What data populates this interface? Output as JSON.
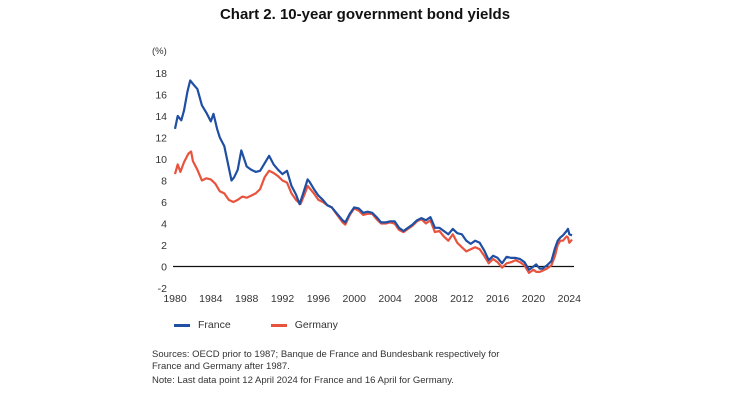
{
  "title": "Chart 2. 10-year government bond yields",
  "chart_data": {
    "type": "line",
    "unit_label": "(%)",
    "xlim": [
      1980,
      2024.3
    ],
    "ylim": [
      -2,
      18
    ],
    "x_ticks": [
      1980,
      1984,
      1988,
      1992,
      1996,
      2000,
      2004,
      2008,
      2012,
      2016,
      2020,
      2024
    ],
    "y_ticks": [
      -2,
      0,
      2,
      4,
      6,
      8,
      10,
      12,
      14,
      16,
      18
    ],
    "grid": false,
    "zero_line": true,
    "legend_position": "bottom-left",
    "series": [
      {
        "name": "France",
        "color": "#1f4fa3",
        "points": [
          [
            1980,
            12.8
          ],
          [
            1980.3,
            14.0
          ],
          [
            1980.7,
            13.6
          ],
          [
            1981,
            14.5
          ],
          [
            1981.4,
            16.3
          ],
          [
            1981.7,
            17.3
          ],
          [
            1982,
            17.0
          ],
          [
            1982.5,
            16.5
          ],
          [
            1983,
            15.0
          ],
          [
            1983.5,
            14.3
          ],
          [
            1984,
            13.5
          ],
          [
            1984.3,
            14.2
          ],
          [
            1984.7,
            12.8
          ],
          [
            1985,
            12.0
          ],
          [
            1985.5,
            11.2
          ],
          [
            1986,
            9.2
          ],
          [
            1986.3,
            8.0
          ],
          [
            1986.6,
            8.3
          ],
          [
            1987,
            9.0
          ],
          [
            1987.4,
            10.8
          ],
          [
            1987.8,
            9.8
          ],
          [
            1988,
            9.3
          ],
          [
            1988.5,
            9.0
          ],
          [
            1989,
            8.8
          ],
          [
            1989.5,
            8.9
          ],
          [
            1990,
            9.6
          ],
          [
            1990.5,
            10.3
          ],
          [
            1991,
            9.5
          ],
          [
            1991.5,
            9.0
          ],
          [
            1992,
            8.6
          ],
          [
            1992.5,
            8.9
          ],
          [
            1993,
            7.5
          ],
          [
            1993.5,
            6.7
          ],
          [
            1993.9,
            5.8
          ],
          [
            1994.3,
            6.8
          ],
          [
            1994.8,
            8.1
          ],
          [
            1995,
            7.9
          ],
          [
            1995.5,
            7.2
          ],
          [
            1996,
            6.6
          ],
          [
            1996.5,
            6.2
          ],
          [
            1997,
            5.7
          ],
          [
            1997.5,
            5.5
          ],
          [
            1998,
            5.0
          ],
          [
            1998.7,
            4.3
          ],
          [
            1999,
            4.1
          ],
          [
            1999.5,
            4.9
          ],
          [
            2000,
            5.5
          ],
          [
            2000.5,
            5.4
          ],
          [
            2001,
            5.0
          ],
          [
            2001.5,
            5.1
          ],
          [
            2002,
            5.0
          ],
          [
            2002.5,
            4.6
          ],
          [
            2003,
            4.1
          ],
          [
            2003.5,
            4.1
          ],
          [
            2004,
            4.2
          ],
          [
            2004.5,
            4.2
          ],
          [
            2005,
            3.6
          ],
          [
            2005.5,
            3.3
          ],
          [
            2006,
            3.6
          ],
          [
            2006.5,
            3.9
          ],
          [
            2007,
            4.3
          ],
          [
            2007.5,
            4.5
          ],
          [
            2008,
            4.3
          ],
          [
            2008.5,
            4.6
          ],
          [
            2009,
            3.6
          ],
          [
            2009.5,
            3.6
          ],
          [
            2010,
            3.3
          ],
          [
            2010.5,
            3.0
          ],
          [
            2011,
            3.5
          ],
          [
            2011.5,
            3.1
          ],
          [
            2012,
            3.0
          ],
          [
            2012.5,
            2.4
          ],
          [
            2013,
            2.1
          ],
          [
            2013.5,
            2.4
          ],
          [
            2014,
            2.2
          ],
          [
            2014.5,
            1.5
          ],
          [
            2015,
            0.6
          ],
          [
            2015.5,
            1.0
          ],
          [
            2016,
            0.8
          ],
          [
            2016.5,
            0.3
          ],
          [
            2017,
            0.9
          ],
          [
            2017.5,
            0.8
          ],
          [
            2018,
            0.8
          ],
          [
            2018.5,
            0.7
          ],
          [
            2019,
            0.4
          ],
          [
            2019.5,
            -0.3
          ],
          [
            2020,
            0.0
          ],
          [
            2020.3,
            0.2
          ],
          [
            2020.7,
            -0.2
          ],
          [
            2021,
            -0.2
          ],
          [
            2021.5,
            0.1
          ],
          [
            2022,
            0.5
          ],
          [
            2022.4,
            1.7
          ],
          [
            2022.7,
            2.4
          ],
          [
            2023,
            2.7
          ],
          [
            2023.3,
            2.9
          ],
          [
            2023.7,
            3.3
          ],
          [
            2023.85,
            3.5
          ],
          [
            2024,
            3.0
          ],
          [
            2024.3,
            2.9
          ]
        ]
      },
      {
        "name": "Germany",
        "color": "#e8533e",
        "points": [
          [
            1980,
            8.6
          ],
          [
            1980.3,
            9.5
          ],
          [
            1980.6,
            8.8
          ],
          [
            1981,
            9.7
          ],
          [
            1981.5,
            10.5
          ],
          [
            1981.8,
            10.7
          ],
          [
            1982,
            9.8
          ],
          [
            1982.5,
            9.0
          ],
          [
            1983,
            8.0
          ],
          [
            1983.5,
            8.2
          ],
          [
            1984,
            8.1
          ],
          [
            1984.5,
            7.7
          ],
          [
            1985,
            7.0
          ],
          [
            1985.5,
            6.8
          ],
          [
            1986,
            6.2
          ],
          [
            1986.5,
            6.0
          ],
          [
            1987,
            6.2
          ],
          [
            1987.5,
            6.5
          ],
          [
            1988,
            6.4
          ],
          [
            1988.5,
            6.6
          ],
          [
            1989,
            6.8
          ],
          [
            1989.5,
            7.2
          ],
          [
            1990,
            8.3
          ],
          [
            1990.5,
            8.9
          ],
          [
            1991,
            8.7
          ],
          [
            1991.5,
            8.4
          ],
          [
            1992,
            8.0
          ],
          [
            1992.5,
            7.8
          ],
          [
            1993,
            6.8
          ],
          [
            1993.5,
            6.2
          ],
          [
            1994,
            5.8
          ],
          [
            1994.5,
            6.8
          ],
          [
            1994.8,
            7.5
          ],
          [
            1995,
            7.3
          ],
          [
            1995.5,
            6.8
          ],
          [
            1996,
            6.2
          ],
          [
            1996.5,
            6.0
          ],
          [
            1997,
            5.7
          ],
          [
            1997.5,
            5.5
          ],
          [
            1998,
            4.9
          ],
          [
            1998.7,
            4.1
          ],
          [
            1999,
            3.9
          ],
          [
            1999.5,
            4.8
          ],
          [
            2000,
            5.4
          ],
          [
            2000.5,
            5.2
          ],
          [
            2001,
            4.8
          ],
          [
            2001.5,
            4.9
          ],
          [
            2002,
            4.9
          ],
          [
            2002.5,
            4.4
          ],
          [
            2003,
            4.0
          ],
          [
            2003.5,
            4.0
          ],
          [
            2004,
            4.1
          ],
          [
            2004.5,
            4.0
          ],
          [
            2005,
            3.4
          ],
          [
            2005.5,
            3.2
          ],
          [
            2006,
            3.5
          ],
          [
            2006.5,
            3.8
          ],
          [
            2007,
            4.2
          ],
          [
            2007.5,
            4.4
          ],
          [
            2008,
            4.0
          ],
          [
            2008.5,
            4.3
          ],
          [
            2009,
            3.2
          ],
          [
            2009.5,
            3.3
          ],
          [
            2010,
            2.8
          ],
          [
            2010.5,
            2.4
          ],
          [
            2011,
            3.0
          ],
          [
            2011.5,
            2.2
          ],
          [
            2012,
            1.8
          ],
          [
            2012.5,
            1.4
          ],
          [
            2013,
            1.6
          ],
          [
            2013.5,
            1.8
          ],
          [
            2014,
            1.6
          ],
          [
            2014.5,
            1.0
          ],
          [
            2015,
            0.3
          ],
          [
            2015.5,
            0.7
          ],
          [
            2016,
            0.4
          ],
          [
            2016.5,
            -0.1
          ],
          [
            2017,
            0.3
          ],
          [
            2017.5,
            0.4
          ],
          [
            2018,
            0.6
          ],
          [
            2018.5,
            0.4
          ],
          [
            2019,
            0.1
          ],
          [
            2019.5,
            -0.6
          ],
          [
            2020,
            -0.3
          ],
          [
            2020.3,
            -0.5
          ],
          [
            2020.7,
            -0.5
          ],
          [
            2021,
            -0.4
          ],
          [
            2021.5,
            -0.2
          ],
          [
            2022,
            0.1
          ],
          [
            2022.4,
            1.0
          ],
          [
            2022.7,
            2.0
          ],
          [
            2023,
            2.4
          ],
          [
            2023.3,
            2.4
          ],
          [
            2023.7,
            2.8
          ],
          [
            2023.85,
            2.7
          ],
          [
            2024,
            2.2
          ],
          [
            2024.3,
            2.5
          ]
        ]
      }
    ]
  },
  "notes": {
    "sources": "Sources: OECD prior to 1987; Banque de France and Bundesbank respectively for France and Germany after 1987.",
    "note": "Note: Last data point 12 April 2024 for France and 16 April for Germany."
  }
}
